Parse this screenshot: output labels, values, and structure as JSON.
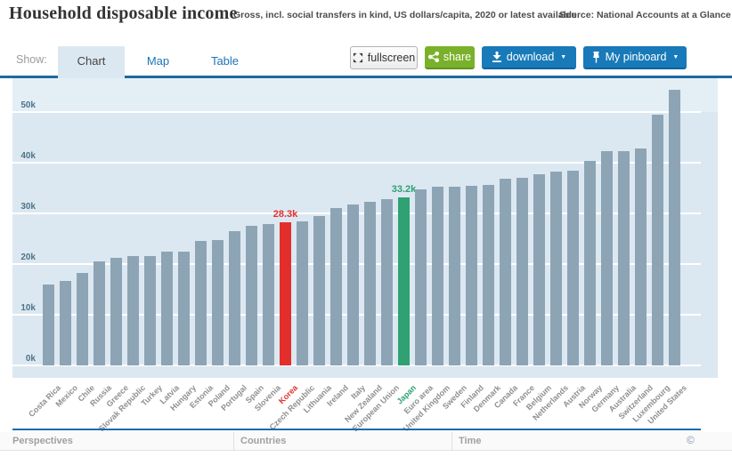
{
  "header": {
    "title": "Household disposable income",
    "subtitle": "Gross, incl. social transfers in kind, US dollars/capita, 2020 or latest available",
    "source": "Source: National Accounts at a Glance"
  },
  "toolbar": {
    "show_label": "Show:",
    "tabs": [
      {
        "label": "Chart",
        "active": true
      },
      {
        "label": "Map",
        "active": false
      },
      {
        "label": "Table",
        "active": false
      }
    ],
    "fullscreen_label": "fullscreen",
    "share_label": "share",
    "download_label": "download",
    "pinboard_label": "My pinboard",
    "caret": "▼"
  },
  "chart_data": {
    "type": "bar",
    "title": "Household disposable income",
    "subtitle": "Gross, incl. social transfers in kind, US dollars/capita, 2020 or latest available",
    "xlabel": "",
    "ylabel": "",
    "ylim": [
      0,
      55
    ],
    "yticks": [
      0,
      10,
      20,
      30,
      40,
      50
    ],
    "ytick_suffix": "k",
    "grid": true,
    "legend": "none",
    "categories": [
      "Costa Rica",
      "Mexico",
      "Chile",
      "Russia",
      "Greece",
      "Slovak Republic",
      "Turkey",
      "Latvia",
      "Hungary",
      "Estonia",
      "Poland",
      "Portugal",
      "Spain",
      "Slovenia",
      "Korea",
      "Czech Republic",
      "Lithuania",
      "Ireland",
      "Italy",
      "New Zealand",
      "European Union",
      "Japan",
      "Euro area",
      "United Kingdom",
      "Sweden",
      "Finland",
      "Denmark",
      "Canada",
      "France",
      "Belgium",
      "Netherlands",
      "Austria",
      "Norway",
      "Germany",
      "Australia",
      "Switzerland",
      "Luxembourg",
      "United States"
    ],
    "values": [
      15.9,
      16.7,
      18.3,
      20.5,
      21.2,
      21.5,
      21.6,
      22.4,
      22.5,
      24.6,
      24.7,
      26.5,
      27.5,
      27.9,
      28.3,
      28.4,
      29.4,
      31.1,
      31.7,
      32.3,
      32.8,
      33.2,
      34.8,
      35.2,
      35.3,
      35.5,
      35.7,
      36.8,
      37.1,
      37.7,
      38.3,
      38.4,
      40.4,
      42.2,
      42.3,
      42.8,
      49.5,
      54.4
    ],
    "highlights": {
      "Korea": {
        "color": "#e22f2c",
        "data_label": "28.3k"
      },
      "Japan": {
        "color": "#2fa173",
        "data_label": "33.2k"
      }
    },
    "colors": {
      "bar_default": "#8da4b5",
      "plot_background": "#dce8f1",
      "gridline": "#ffffff",
      "ytick_text": "#4f7389",
      "xtick_text": "#8f8f8f"
    }
  },
  "footer": {
    "sections": [
      "Perspectives",
      "Countries",
      "Time"
    ],
    "copyright": "©"
  }
}
